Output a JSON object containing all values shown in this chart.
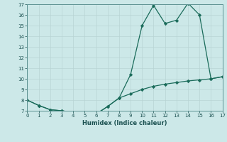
{
  "xlabel": "Humidex (Indice chaleur)",
  "line1_x": [
    0,
    1,
    2,
    3,
    4,
    5,
    6,
    7,
    8,
    9,
    10,
    11,
    12,
    13,
    14,
    15,
    16,
    17
  ],
  "line1_y": [
    8.0,
    7.5,
    7.1,
    7.0,
    6.85,
    6.85,
    6.7,
    7.4,
    8.2,
    10.4,
    15.0,
    16.9,
    15.2,
    15.5,
    17.1,
    16.0,
    10.0,
    10.2
  ],
  "line2_x": [
    0,
    1,
    2,
    3,
    4,
    5,
    6,
    7,
    8,
    9,
    10,
    11,
    12,
    13,
    14,
    15,
    16,
    17
  ],
  "line2_y": [
    8.0,
    7.5,
    7.1,
    7.0,
    6.85,
    6.85,
    6.7,
    7.4,
    8.2,
    8.6,
    9.0,
    9.3,
    9.5,
    9.65,
    9.8,
    9.9,
    10.0,
    10.2
  ],
  "line_color": "#1a6b5a",
  "bg_color": "#cce8e8",
  "grid_color": "#b8d4d4",
  "ylim": [
    7,
    17
  ],
  "xlim": [
    0,
    17
  ],
  "yticks": [
    7,
    8,
    9,
    10,
    11,
    12,
    13,
    14,
    15,
    16,
    17
  ],
  "xticks": [
    0,
    1,
    2,
    3,
    4,
    5,
    6,
    7,
    8,
    9,
    10,
    11,
    12,
    13,
    14,
    15,
    16,
    17
  ]
}
